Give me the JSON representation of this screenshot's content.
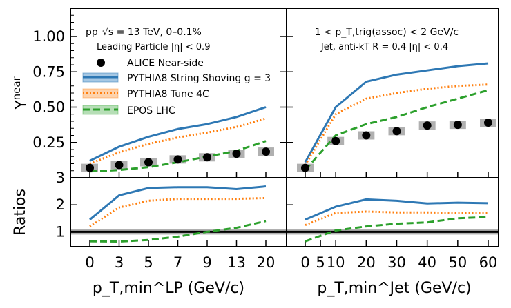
{
  "chart_data": {
    "type": "line",
    "colors": {
      "alice": "#000000",
      "string_shoving": "#2e78b4",
      "tune4c": "#ff7f0e",
      "epos": "#2ca02c",
      "ratio_ref": "#000000",
      "syst": "#b0b0b0"
    },
    "legend": {
      "alice": "ALICE Near-side",
      "string_shoving": "PYTHIA8 String Shoving g = 3",
      "tune4c": "PYTHIA8 Tune 4C",
      "epos": "EPOS LHC"
    },
    "legend_pp": "pp",
    "legend_energy": "√s = 13 TeV, 0–0.1%",
    "ylabel_top": "Y^near",
    "ylabel_bottom": "Ratios",
    "left_panel": {
      "subtitle": "Leading Particle |η| < 0.9",
      "xlabel": "p_T,min^LP (GeV/c)",
      "categories": [
        "0",
        "3",
        "5",
        "7",
        "9",
        "13",
        "20"
      ],
      "alice": [
        0.07,
        0.09,
        0.11,
        0.13,
        0.145,
        0.17,
        0.185
      ],
      "string_shoving": [
        0.12,
        0.22,
        0.29,
        0.345,
        0.38,
        0.43,
        0.5
      ],
      "tune4c": [
        0.1,
        0.18,
        0.24,
        0.285,
        0.32,
        0.36,
        0.42
      ],
      "epos": [
        0.045,
        0.055,
        0.075,
        0.11,
        0.15,
        0.19,
        0.26
      ],
      "ratio_string_shoving": [
        1.45,
        2.35,
        2.62,
        2.65,
        2.65,
        2.58,
        2.68
      ],
      "ratio_tune4c": [
        1.2,
        1.9,
        2.15,
        2.22,
        2.22,
        2.22,
        2.25
      ],
      "ratio_epos": [
        0.65,
        0.64,
        0.7,
        0.82,
        1.0,
        1.15,
        1.4
      ]
    },
    "right_panel": {
      "title": "1 < p_T,trig(assoc) < 2 GeV/c",
      "subtitle": "Jet, anti-kT R = 0.4 |η| < 0.4",
      "xlabel": "p_T,min^Jet (GeV/c)",
      "x": [
        0,
        10,
        20,
        30,
        40,
        50,
        60
      ],
      "tick_labels": [
        "0",
        "5",
        "10",
        "20",
        "30",
        "40",
        "50",
        "60"
      ],
      "alice": [
        0.07,
        0.26,
        0.3,
        0.33,
        0.37,
        0.375,
        0.39
      ],
      "string_shoving": [
        0.11,
        0.5,
        0.68,
        0.73,
        0.76,
        0.79,
        0.81
      ],
      "tune4c": [
        0.09,
        0.45,
        0.56,
        0.6,
        0.63,
        0.65,
        0.66
      ],
      "epos": [
        0.055,
        0.3,
        0.38,
        0.43,
        0.5,
        0.56,
        0.62
      ],
      "ratio_string_shoving": [
        1.45,
        1.93,
        2.2,
        2.15,
        2.05,
        2.08,
        2.06
      ],
      "ratio_tune4c": [
        1.25,
        1.7,
        1.75,
        1.72,
        1.72,
        1.7,
        1.7
      ],
      "ratio_epos": [
        0.65,
        1.05,
        1.2,
        1.3,
        1.35,
        1.5,
        1.55
      ]
    },
    "top_yticks": [
      "0.25",
      "0.50",
      "0.75",
      "1.00"
    ],
    "top_ylim": [
      0.0,
      1.2
    ],
    "bottom_yticks": [
      "1",
      "2",
      "3"
    ],
    "bottom_ylim": [
      0.45,
      3.0
    ]
  }
}
